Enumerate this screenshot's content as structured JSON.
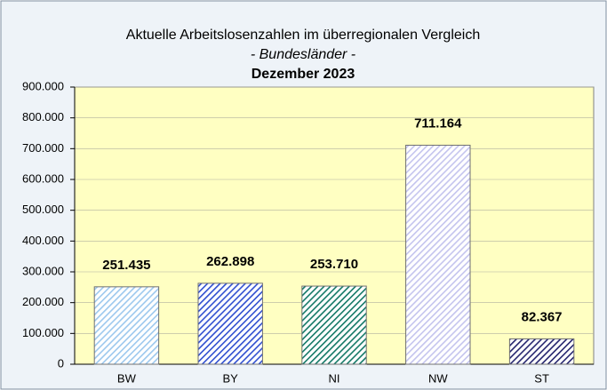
{
  "chart_data": {
    "type": "bar",
    "title": "Aktuelle Arbeitslosenzahlen im überregionalen Vergleich",
    "subtitle": "- Bundesländer -",
    "period": "Dezember 2023",
    "categories": [
      "BW",
      "BY",
      "NI",
      "NW",
      "ST"
    ],
    "values": [
      251435,
      262898,
      253710,
      711164,
      82367
    ],
    "value_labels": [
      "251.435",
      "262.898",
      "253.710",
      "711.164",
      "82.367"
    ],
    "colors": [
      "#9cc8ee",
      "#2f4fd0",
      "#137866",
      "#c4c4ee",
      "#24246e"
    ],
    "ylim": [
      0,
      900000
    ],
    "yticks": [
      0,
      {
        "value": 100000,
        "label": "100.000"
      },
      {
        "value": 200000,
        "label": "200.000"
      },
      {
        "value": 300000,
        "label": "300.000"
      },
      {
        "value": 400000,
        "label": "400.000"
      },
      {
        "value": 500000,
        "label": "500.000"
      },
      {
        "value": 600000,
        "label": "600.000"
      },
      {
        "value": 700000,
        "label": "700.000"
      },
      {
        "value": 800000,
        "label": "800.000"
      },
      {
        "value": 900000,
        "label": "900.000"
      }
    ],
    "grid": true
  }
}
